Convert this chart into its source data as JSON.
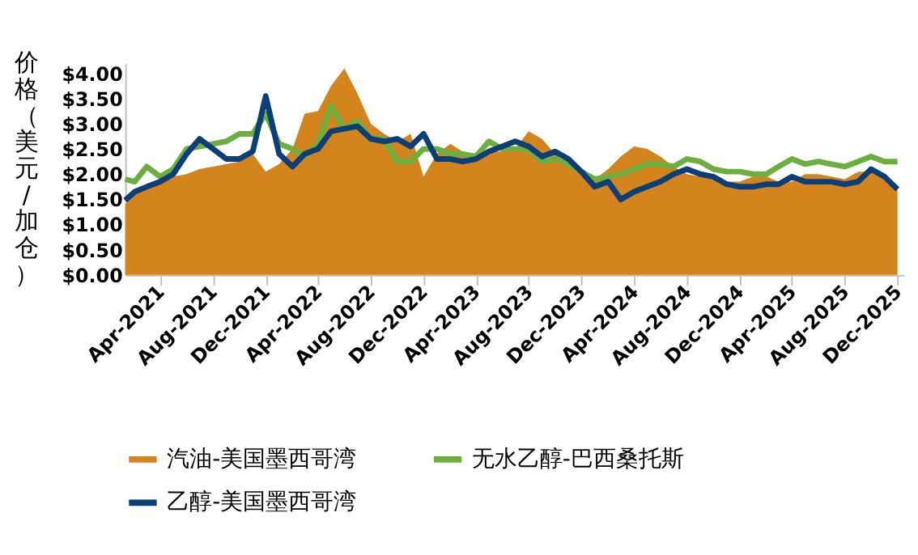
{
  "chart_data": {
    "type": "area",
    "ylabel": "价格（美元/加仓）",
    "x": [
      "2021-01-10",
      "2021-02-01",
      "2021-03-01",
      "2021-04-01",
      "2021-05-01",
      "2021-06-01",
      "2021-07-01",
      "2021-08-01",
      "2021-09-01",
      "2021-10-01",
      "2021-11-01",
      "2021-12-01",
      "2022-01-01",
      "2022-02-01",
      "2022-03-01",
      "2022-04-01",
      "2022-05-01",
      "2022-06-01",
      "2022-07-01",
      "2022-08-01",
      "2022-09-01",
      "2022-10-01",
      "2022-11-01",
      "2022-12-01",
      "2023-01-01",
      "2023-02-01",
      "2023-03-01",
      "2023-04-01",
      "2023-05-01",
      "2023-06-01",
      "2023-07-01",
      "2023-08-01",
      "2023-09-01",
      "2023-10-01",
      "2023-11-01",
      "2023-12-01",
      "2024-01-01",
      "2024-02-01",
      "2024-03-01",
      "2024-04-01",
      "2024-05-01",
      "2024-06-01",
      "2024-07-01",
      "2024-08-01",
      "2024-09-01",
      "2024-10-01",
      "2024-11-01",
      "2024-12-01",
      "2025-01-01",
      "2025-02-01",
      "2025-03-01",
      "2025-04-01",
      "2025-05-01",
      "2025-06-01",
      "2025-07-01",
      "2025-08-01",
      "2025-09-01",
      "2025-10-01",
      "2025-11-01",
      "2025-12-01"
    ],
    "series": [
      {
        "name": "汽油-美国墨西哥湾",
        "type": "area",
        "color": "#d4841c",
        "values": [
          1.4,
          1.6,
          1.75,
          1.84,
          1.95,
          2.0,
          2.1,
          2.15,
          2.2,
          2.25,
          2.4,
          2.05,
          2.2,
          2.5,
          3.2,
          3.25,
          3.75,
          4.1,
          3.6,
          3.0,
          2.8,
          2.65,
          2.8,
          1.95,
          2.4,
          2.6,
          2.45,
          2.4,
          2.45,
          2.45,
          2.5,
          2.85,
          2.7,
          2.4,
          2.2,
          2.0,
          1.9,
          2.1,
          2.35,
          2.55,
          2.5,
          2.35,
          2.15,
          2.0,
          1.95,
          2.0,
          1.85,
          1.85,
          1.95,
          1.95,
          1.85,
          1.85,
          2.0,
          2.0,
          1.95,
          1.9,
          2.05,
          2.05,
          1.95,
          1.75
        ]
      },
      {
        "name": "无水乙醇-巴西桑托斯",
        "type": "line",
        "color": "#6daf3f",
        "values": [
          1.9,
          1.85,
          2.15,
          1.95,
          2.1,
          2.5,
          2.55,
          2.6,
          2.65,
          2.8,
          2.8,
          3.2,
          2.6,
          2.5,
          2.35,
          2.6,
          3.35,
          2.9,
          3.05,
          2.7,
          2.7,
          2.25,
          2.25,
          2.5,
          2.5,
          2.4,
          2.4,
          2.35,
          2.65,
          2.5,
          2.5,
          2.5,
          2.25,
          2.3,
          2.2,
          2.05,
          1.9,
          1.95,
          2.0,
          2.1,
          2.2,
          2.2,
          2.15,
          2.3,
          2.25,
          2.1,
          2.05,
          2.05,
          2.0,
          2.0,
          2.15,
          2.3,
          2.2,
          2.25,
          2.2,
          2.15,
          2.25,
          2.35,
          2.25,
          2.25
        ]
      },
      {
        "name": "乙醇-美国墨西哥湾",
        "type": "line",
        "color": "#0b3f7a",
        "values": [
          1.48,
          1.65,
          1.75,
          1.85,
          2.0,
          2.4,
          2.7,
          2.5,
          2.3,
          2.3,
          2.45,
          3.55,
          2.4,
          2.15,
          2.4,
          2.5,
          2.85,
          2.9,
          2.95,
          2.7,
          2.65,
          2.7,
          2.55,
          2.8,
          2.3,
          2.3,
          2.25,
          2.3,
          2.45,
          2.55,
          2.65,
          2.55,
          2.35,
          2.45,
          2.3,
          2.05,
          1.75,
          1.85,
          1.5,
          1.65,
          1.75,
          1.85,
          2.0,
          2.1,
          2.0,
          1.95,
          1.8,
          1.75,
          1.75,
          1.8,
          1.8,
          1.95,
          1.85,
          1.85,
          1.85,
          1.8,
          1.85,
          2.1,
          1.95,
          1.7
        ]
      }
    ],
    "xlim": [
      "2021-01-10",
      "2025-12-15"
    ],
    "xticks": [
      {
        "value": "2021-04-01",
        "label": "Apr-2021"
      },
      {
        "value": "2021-08-01",
        "label": "Aug-2021"
      },
      {
        "value": "2021-12-01",
        "label": "Dec-2021"
      },
      {
        "value": "2022-04-01",
        "label": "Apr-2022"
      },
      {
        "value": "2022-08-01",
        "label": "Aug-2022"
      },
      {
        "value": "2022-12-01",
        "label": "Dec-2022"
      },
      {
        "value": "2023-04-01",
        "label": "Apr-2023"
      },
      {
        "value": "2023-08-01",
        "label": "Aug-2023"
      },
      {
        "value": "2023-12-01",
        "label": "Dec-2023"
      },
      {
        "value": "2024-04-01",
        "label": "Apr-2024"
      },
      {
        "value": "2024-08-01",
        "label": "Aug-2024"
      },
      {
        "value": "2024-12-01",
        "label": "Dec-2024"
      },
      {
        "value": "2025-04-01",
        "label": "Apr-2025"
      },
      {
        "value": "2025-08-01",
        "label": "Aug-2025"
      },
      {
        "value": "2025-12-01",
        "label": "Dec-2025"
      }
    ],
    "ylim": [
      0,
      4.2
    ],
    "yticks": [
      {
        "value": 0,
        "label": "$0.00"
      },
      {
        "value": 0.5,
        "label": "$0.50"
      },
      {
        "value": 1,
        "label": "$1.00"
      },
      {
        "value": 1.5,
        "label": "$1.50"
      },
      {
        "value": 2,
        "label": "$2.00"
      },
      {
        "value": 2.5,
        "label": "$2.50"
      },
      {
        "value": 3,
        "label": "$3.00"
      },
      {
        "value": 3.5,
        "label": "$3.50"
      },
      {
        "value": 4,
        "label": "$4.00"
      }
    ],
    "grid": false,
    "legend": "bottom",
    "marker": "none",
    "line_style": "solid"
  }
}
